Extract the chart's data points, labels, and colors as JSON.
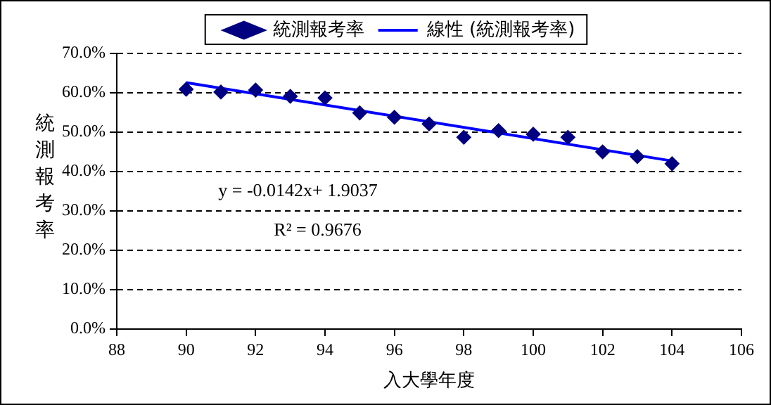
{
  "chart_data": {
    "type": "scatter",
    "xlabel": "入大學年度",
    "ylabel": "統測報考率",
    "x": [
      90,
      91,
      92,
      93,
      94,
      95,
      96,
      97,
      98,
      99,
      100,
      101,
      102,
      103,
      104
    ],
    "series": [
      {
        "name": "統測報考率",
        "color": "#000080",
        "marker": "diamond",
        "values": [
          0.609,
          0.602,
          0.607,
          0.591,
          0.587,
          0.549,
          0.538,
          0.521,
          0.487,
          0.504,
          0.495,
          0.487,
          0.45,
          0.438,
          0.42
        ]
      },
      {
        "name": "線性 (統測報考率)",
        "type": "line",
        "color": "#0000ff",
        "marker": "none",
        "x": [
          90,
          104
        ],
        "values": [
          0.626,
          0.427
        ]
      }
    ],
    "xlim": [
      88,
      106
    ],
    "xticks": [
      88,
      90,
      92,
      94,
      96,
      98,
      100,
      102,
      104,
      106
    ],
    "ylim": [
      0,
      0.7
    ],
    "yticks": [
      {
        "value": 0,
        "label": "0.0%"
      },
      {
        "value": 0.1,
        "label": "10.0%"
      },
      {
        "value": 0.2,
        "label": "20.0%"
      },
      {
        "value": 0.3,
        "label": "30.0%"
      },
      {
        "value": 0.4,
        "label": "40.0%"
      },
      {
        "value": 0.5,
        "label": "50.0%"
      },
      {
        "value": 0.6,
        "label": "60.0%"
      },
      {
        "value": 0.7,
        "label": "70.0%"
      }
    ],
    "grid": "y",
    "legend": "top",
    "annotations": [
      "y = -0.0142x+ 1.9037",
      "R² = 0.9676"
    ]
  }
}
